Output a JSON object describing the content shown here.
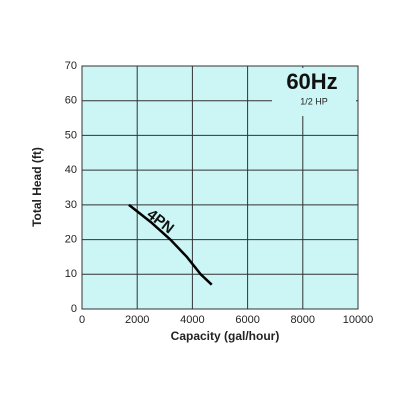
{
  "chart_data": {
    "type": "line",
    "annotations": [
      "60Hz",
      "1/2 HP"
    ],
    "xlabel": "Capacity (gal/hour)",
    "ylabel": "Total Head (ft)",
    "x": [
      1700,
      2500,
      3200,
      3800,
      4300,
      4700
    ],
    "series": [
      {
        "name": "4PN",
        "color": "#000000",
        "values": [
          30,
          25,
          20,
          15,
          10,
          7
        ]
      }
    ],
    "xlim": [
      0,
      10000
    ],
    "xticks": [
      0,
      2000,
      4000,
      6000,
      8000,
      10000
    ],
    "ylim": [
      0,
      70
    ],
    "yticks": [
      0,
      10,
      20,
      30,
      40,
      50,
      60,
      70
    ],
    "grid": true,
    "background": "#ccf5f5"
  }
}
